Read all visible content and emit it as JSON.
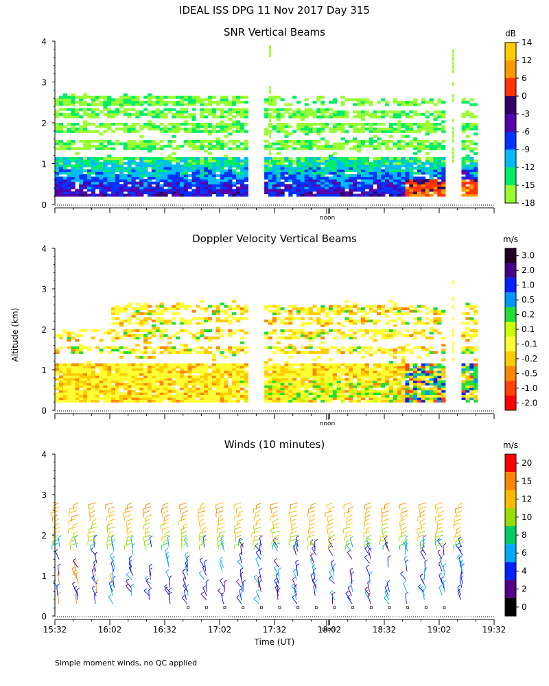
{
  "header": {
    "title": "IDEAL ISS DPG  11 Nov 2017 Day 315"
  },
  "footer": {
    "note": "Simple moment winds, no QC applied"
  },
  "shared": {
    "ylabel": "Altitude (km)",
    "xlabel": "Time (UT)",
    "noon_label": "noon",
    "x_tick_labels": [
      "15:32",
      "16:02",
      "16:32",
      "17:02",
      "17:32",
      "18:02",
      "18:32",
      "19:02",
      "19:32"
    ]
  },
  "chart_data": [
    {
      "type": "heatmap",
      "title": "SNR Vertical Beams",
      "unit": "dB",
      "ylim": [
        0,
        4
      ],
      "y_ticks": [
        "0",
        "1",
        "2",
        "3",
        "4"
      ],
      "colorbar_labels": [
        "14",
        "12",
        "6",
        "0",
        "-3",
        "-6",
        "-9",
        "-12",
        "-15",
        "-18"
      ],
      "colorbar_colors": [
        "#ffcc00",
        "#ff9900",
        "#ff3300",
        "#330066",
        "#5500aa",
        "#0033ff",
        "#00bbff",
        "#00ee66",
        "#99ff33"
      ],
      "layers": [
        {
          "alt_km": [
            0.2,
            1.1
          ],
          "value_db": "-18 to 6"
        },
        {
          "alt_km": [
            1.2,
            2.6
          ],
          "value_db": "-18 to -15"
        }
      ]
    },
    {
      "type": "heatmap",
      "title": "Doppler Velocity Vertical Beams",
      "unit": "m/s",
      "ylim": [
        0,
        4
      ],
      "y_ticks": [
        "0",
        "1",
        "2",
        "3",
        "4"
      ],
      "colorbar_labels": [
        "3.0",
        "2.0",
        "1.0",
        "0.5",
        "0.2",
        "0.1",
        "-0.1",
        "-0.2",
        "-0.5",
        "-1.0",
        "-2.0"
      ],
      "colorbar_colors": [
        "#220022",
        "#440088",
        "#0022ff",
        "#0099ff",
        "#22dd33",
        "#ccff00",
        "#ffff33",
        "#ffcc00",
        "#ff8800",
        "#ff4400",
        "#ff0000"
      ]
    },
    {
      "type": "scatter",
      "title": "Winds (10 minutes)",
      "unit": "m/s",
      "ylim": [
        0,
        4
      ],
      "y_ticks": [
        "0",
        "1",
        "2",
        "3",
        "4"
      ],
      "colorbar_labels": [
        "20",
        "15",
        "12",
        "10",
        "8",
        "6",
        "4",
        "2",
        "0"
      ],
      "colorbar_colors": [
        "#ff0000",
        "#ff8800",
        "#ffbb00",
        "#99dd00",
        "#00cc66",
        "#00aaff",
        "#0022ff",
        "#550088",
        "#000000"
      ]
    }
  ]
}
